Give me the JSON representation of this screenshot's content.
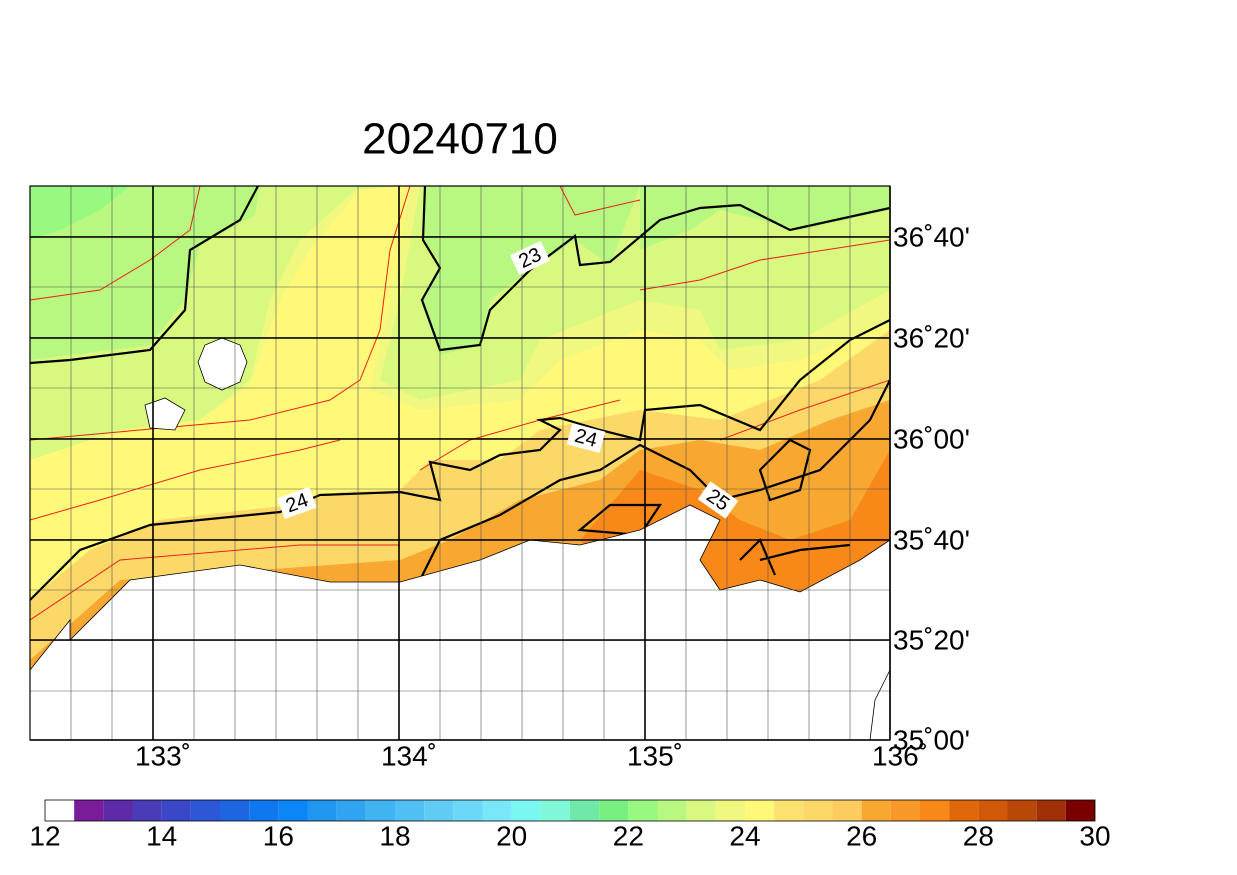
{
  "title": "20240710",
  "map": {
    "lon_labels": [
      "133˚",
      "134˚",
      "135˚",
      "136˚"
    ],
    "lat_labels": [
      "36˚40'",
      "36˚20'",
      "36˚00'",
      "35˚40'",
      "35˚20'",
      "35˚00'"
    ],
    "contour_labels": [
      "23",
      "24",
      "24",
      "25"
    ]
  },
  "colorbar": {
    "ticks": [
      12,
      14,
      16,
      18,
      20,
      22,
      24,
      26,
      28,
      30
    ],
    "colors": [
      "#ffffff",
      "#7b1c9a",
      "#5e2aa8",
      "#4a3cb8",
      "#3a48c8",
      "#2c58d8",
      "#1d66e0",
      "#0f78f0",
      "#0a86f8",
      "#2096f0",
      "#30a4f0",
      "#40b4f0",
      "#50c0f4",
      "#60ccf4",
      "#6cd8f8",
      "#78e8f8",
      "#78f8f0",
      "#80f8d8",
      "#70e8a8",
      "#78f080",
      "#98f880",
      "#b8f880",
      "#d8f880",
      "#f0f880",
      "#fff878",
      "#fce070",
      "#fcd868",
      "#fccc60",
      "#f8a830",
      "#f89828",
      "#f88818",
      "#e06808",
      "#d05808",
      "#b84808",
      "#a03008",
      "#7a0000"
    ]
  }
}
